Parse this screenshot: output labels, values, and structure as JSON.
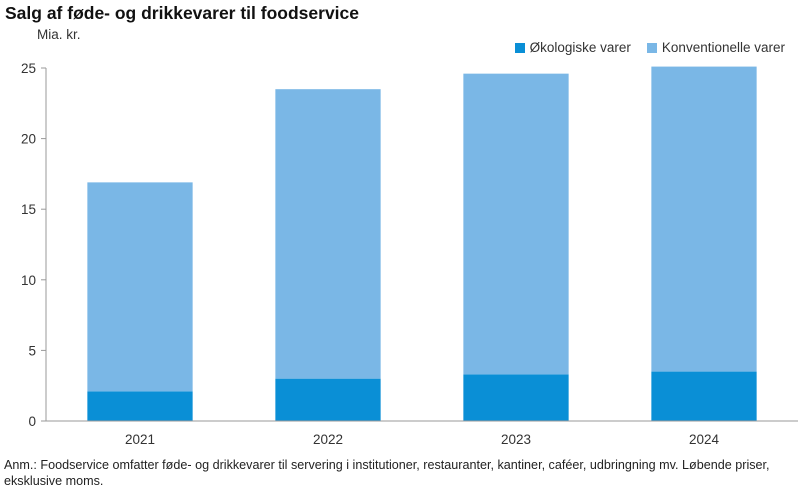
{
  "header": {
    "title": "Salg af føde- og drikkevarer til foodservice",
    "unit": "Mia. kr."
  },
  "colors": {
    "organic": "#0a8fd6",
    "conventional": "#7ab7e6",
    "axis": "#999999",
    "text": "#333333"
  },
  "chart_data": {
    "type": "bar",
    "stacked": true,
    "title": "Salg af føde- og drikkevarer til foodservice",
    "ylabel": "Mia. kr.",
    "xlabel": "",
    "categories": [
      "2021",
      "2022",
      "2023",
      "2024"
    ],
    "series": [
      {
        "name": "Økologiske varer",
        "values": [
          2.1,
          3.0,
          3.3,
          3.5
        ]
      },
      {
        "name": "Konventionelle varer",
        "values": [
          14.8,
          20.5,
          21.3,
          21.6
        ]
      }
    ],
    "ylim": [
      0,
      25
    ],
    "yticks": [
      "0",
      "5",
      "10",
      "15",
      "20",
      "25"
    ],
    "grid": false,
    "legend_position": "top-right"
  },
  "note": {
    "text": "Anm.: Foodservice omfatter føde- og drikkevarer til servering i institutioner, restauranter, kantiner, caféer, udbringning mv. Løbende priser, eksklusive moms."
  }
}
